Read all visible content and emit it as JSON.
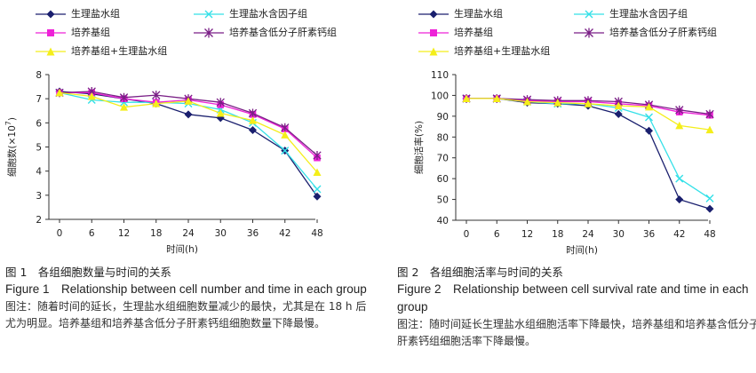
{
  "charts": [
    {
      "id": "left",
      "legend": [
        {
          "label": "生理盐水组",
          "color": "#1a1f6e",
          "marker": "diamond"
        },
        {
          "label": "生理盐水含因子组",
          "color": "#33e0e8",
          "marker": "x"
        },
        {
          "label": "培养基组",
          "color": "#ee22d8",
          "marker": "square"
        },
        {
          "label": "培养基含低分子肝素钙组",
          "color": "#7a1f86",
          "marker": "star"
        },
        {
          "label": "培养基组+生理盐水组",
          "color": "#f4ee1a",
          "marker": "triangle"
        }
      ],
      "caption": {
        "cn_title": "图 1　各组细胞数量与时间的关系",
        "en_title": "Figure 1　Relationship between cell number and time in each group",
        "note": "图注：随着时间的延长，生理盐水组细胞数量减少的最快，尤其是在 18 h 后尤为明显。培养基组和培养基含低分子肝素钙组细胞数量下降最慢。"
      },
      "chart_data": {
        "type": "line",
        "title": "",
        "xlabel": "时间(h)",
        "ylabel_prefix": "细胞数(×10",
        "ylabel_exp": "7",
        "ylabel_suffix": ")",
        "x": [
          0,
          6,
          12,
          18,
          24,
          30,
          36,
          42,
          48
        ],
        "xlim": [
          0,
          48
        ],
        "ylim": [
          2,
          8
        ],
        "yticks": [
          2,
          3,
          4,
          5,
          6,
          7,
          8
        ],
        "series": [
          {
            "name": "生理盐水组",
            "values": [
              7.3,
              7.2,
              7.0,
              6.8,
              6.35,
              6.2,
              5.7,
              4.85,
              2.95
            ]
          },
          {
            "name": "生理盐水含因子组",
            "values": [
              7.25,
              6.95,
              6.85,
              6.85,
              6.8,
              6.55,
              6.0,
              4.85,
              3.25
            ]
          },
          {
            "name": "培养基组",
            "values": [
              7.25,
              7.25,
              7.0,
              6.85,
              6.95,
              6.75,
              6.35,
              5.75,
              4.55
            ]
          },
          {
            "name": "培养基含低分子肝素钙组",
            "values": [
              7.25,
              7.3,
              7.05,
              7.15,
              7.0,
              6.85,
              6.4,
              5.8,
              4.65
            ]
          },
          {
            "name": "培养基组+生理盐水组",
            "values": [
              7.25,
              7.1,
              6.65,
              6.8,
              6.9,
              6.4,
              6.1,
              5.5,
              3.95
            ]
          }
        ]
      }
    },
    {
      "id": "right",
      "legend": [
        {
          "label": "生理盐水组",
          "color": "#1a1f6e",
          "marker": "diamond"
        },
        {
          "label": "生理盐水含因子组",
          "color": "#33e0e8",
          "marker": "x"
        },
        {
          "label": "培养基组",
          "color": "#ee22d8",
          "marker": "square"
        },
        {
          "label": "培养基含低分子肝素钙组",
          "color": "#7a1f86",
          "marker": "star"
        },
        {
          "label": "培养基组+生理盐水组",
          "color": "#f4ee1a",
          "marker": "triangle"
        }
      ],
      "caption": {
        "cn_title": "图 2　各组细胞活率与时间的关系",
        "en_title": "Figure 2　Relationship between cell survival rate and time in each group",
        "note": "图注：随时间延长生理盐水组细胞活率下降最快，培养基组和培养基含低分子肝素钙组细胞活率下降最慢。"
      },
      "chart_data": {
        "type": "line",
        "title": "",
        "xlabel": "时间(h)",
        "ylabel_prefix": "细胞活率(%)",
        "ylabel_exp": "",
        "ylabel_suffix": "",
        "x": [
          0,
          6,
          12,
          18,
          24,
          30,
          36,
          42,
          48
        ],
        "xlim": [
          0,
          48
        ],
        "ylim": [
          40,
          110
        ],
        "yticks": [
          40,
          50,
          60,
          70,
          80,
          90,
          100,
          110
        ],
        "series": [
          {
            "name": "生理盐水组",
            "values": [
              98.5,
              98.5,
              96.5,
              96,
              95,
              91,
              83,
              50,
              45.5
            ]
          },
          {
            "name": "生理盐水含因子组",
            "values": [
              98.5,
              98.5,
              97,
              96,
              96,
              94,
              89.5,
              60,
              50.5
            ]
          },
          {
            "name": "培养基组",
            "values": [
              98.5,
              98.5,
              97.5,
              97,
              97,
              96,
              95,
              92,
              90.5
            ]
          },
          {
            "name": "培养基含低分子肝素钙组",
            "values": [
              98.5,
              98.5,
              98,
              97.5,
              97.5,
              97,
              95.5,
              93,
              91
            ]
          },
          {
            "name": "培养基组+生理盐水组",
            "values": [
              98.5,
              98.5,
              97,
              96.5,
              96,
              95,
              94.5,
              85.5,
              83.5
            ]
          }
        ]
      }
    }
  ]
}
